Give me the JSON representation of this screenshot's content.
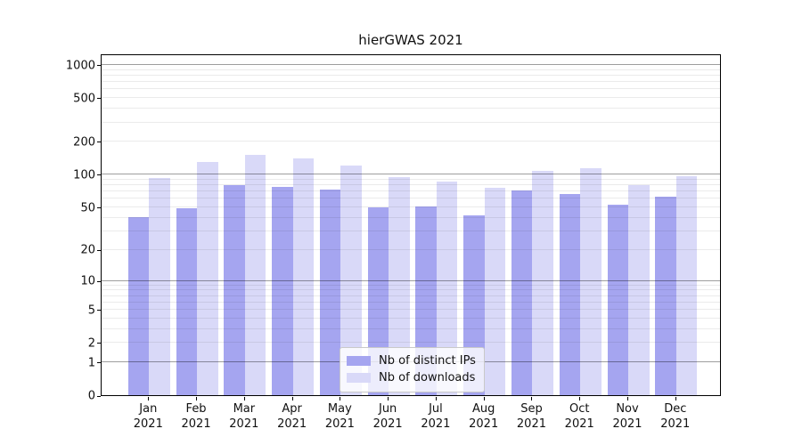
{
  "title": "hierGWAS 2021",
  "chart_data": {
    "type": "bar",
    "title": "hierGWAS 2021",
    "categories": [
      "Jan 2021",
      "Feb 2021",
      "Mar 2021",
      "Apr 2021",
      "May 2021",
      "Jun 2021",
      "Jul 2021",
      "Aug 2021",
      "Sep 2021",
      "Oct 2021",
      "Nov 2021",
      "Dec 2021"
    ],
    "month_labels": [
      "Jan",
      "Feb",
      "Mar",
      "Apr",
      "May",
      "Jun",
      "Jul",
      "Aug",
      "Sep",
      "Oct",
      "Nov",
      "Dec"
    ],
    "year_label": "2021",
    "series": [
      {
        "name": "Nb of distinct IPs",
        "color": "#a5a5f0",
        "values": [
          40,
          49,
          80,
          77,
          73,
          50,
          51,
          42,
          71,
          66,
          53,
          62
        ]
      },
      {
        "name": "Nb of downloads",
        "color": "#d9d9f8",
        "values": [
          93,
          129,
          150,
          140,
          121,
          94,
          86,
          75,
          108,
          114,
          79,
          96
        ]
      }
    ],
    "yscale": "log10(value+1)",
    "yticks": [
      0,
      1,
      2,
      5,
      10,
      20,
      50,
      100,
      200,
      500,
      1000
    ],
    "major_gridlines": [
      1,
      10,
      100,
      1000
    ],
    "minor_gridlines": [
      2,
      3,
      4,
      5,
      6,
      7,
      8,
      9,
      20,
      30,
      40,
      50,
      60,
      70,
      80,
      90,
      200,
      300,
      400,
      500,
      600,
      700,
      800,
      900
    ],
    "ylim": [
      0,
      1264
    ],
    "grid": "horizontal",
    "legend_position": "inside lower center",
    "legend": [
      "Nb of distinct IPs",
      "Nb of downloads"
    ],
    "bar_colors": {
      "distinct_ips": "#a5a5f0",
      "downloads": "#d9d9f8"
    }
  }
}
